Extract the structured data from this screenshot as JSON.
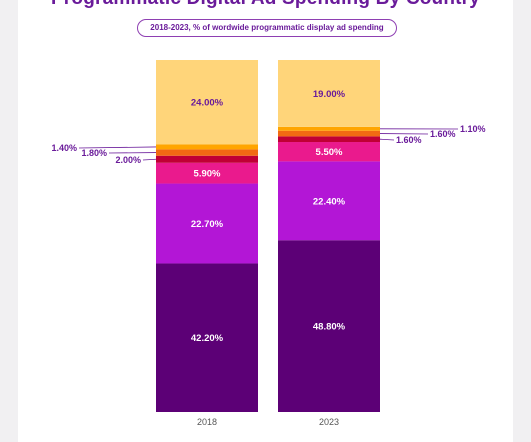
{
  "chart_data": {
    "type": "bar",
    "stacked": true,
    "title": "Programmatic Digital Ad Spending By Country",
    "subtitle": "2018-2023, % of wordwide programmatic display ad spending",
    "categories": [
      "2018",
      "2023"
    ],
    "series": [
      {
        "color": "#5c0076",
        "values": [
          42.2,
          48.8
        ],
        "labels": [
          "42.20%",
          "48.80%"
        ]
      },
      {
        "color": "#b316d6",
        "values": [
          22.7,
          22.4
        ],
        "labels": [
          "22.70%",
          "22.40%"
        ]
      },
      {
        "color": "#ea1a8d",
        "values": [
          5.9,
          5.5
        ],
        "labels": [
          "5.90%",
          "5.50%"
        ]
      },
      {
        "color": "#c00035",
        "values": [
          2.0,
          1.6
        ],
        "labels": [
          "2.00%",
          "1.60%"
        ]
      },
      {
        "color": "#f26a13",
        "values": [
          1.8,
          1.6
        ],
        "labels": [
          "1.80%",
          "1.60%"
        ]
      },
      {
        "color": "#ffa500",
        "values": [
          1.4,
          1.1
        ],
        "labels": [
          "1.40%",
          "1.10%"
        ]
      },
      {
        "color": "#ffd57a",
        "values": [
          24.0,
          19.0
        ],
        "labels": [
          "24.00%",
          "19.00%"
        ]
      }
    ],
    "ylim": [
      0,
      100
    ],
    "legend": "none",
    "grid": false
  }
}
